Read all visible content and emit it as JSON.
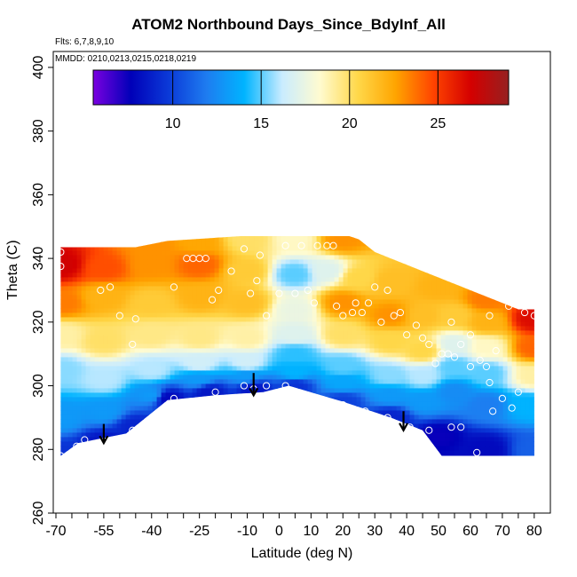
{
  "chart_data": {
    "type": "heatmap",
    "title": "ATOM2 Northbound Days_Since_BdyInf_All",
    "flights_label": "Flts: 6,7,8,9,10",
    "dates_label": "MMDD: 0210,0213,0215,0218,0219",
    "xlabel": "Latitude (deg N)",
    "ylabel": "Theta (C)",
    "xlim": [
      -70,
      82
    ],
    "ylim": [
      260,
      405
    ],
    "xticks": [
      -70,
      -55,
      -40,
      -25,
      -10,
      0,
      10,
      20,
      30,
      40,
      50,
      60,
      70,
      80
    ],
    "yticks": [
      260,
      280,
      300,
      320,
      340,
      360,
      380,
      400
    ],
    "colorbar": {
      "range": [
        5.5,
        29
      ],
      "ticks": [
        10,
        15,
        20,
        25
      ],
      "colors": [
        "#7a00e0",
        "#0000b8",
        "#0b3ad8",
        "#1e7cf0",
        "#00b4ff",
        "#c9ecff",
        "#fffbd0",
        "#ffd84a",
        "#ffa500",
        "#ff4400",
        "#d40000",
        "#962020"
      ]
    },
    "fill_outline": [
      [
        -68.5,
        278
      ],
      [
        -63,
        282
      ],
      [
        -48,
        285
      ],
      [
        -35,
        295.5
      ],
      [
        -20,
        297
      ],
      [
        -5,
        298
      ],
      [
        3,
        300
      ],
      [
        20,
        295
      ],
      [
        35,
        290
      ],
      [
        45,
        286
      ],
      [
        51,
        278
      ],
      [
        80,
        278
      ],
      [
        80,
        324
      ],
      [
        75,
        324
      ],
      [
        70,
        326
      ],
      [
        65,
        328
      ],
      [
        60,
        330
      ],
      [
        55,
        332
      ],
      [
        50,
        334
      ],
      [
        45,
        336
      ],
      [
        40,
        338
      ],
      [
        35,
        340
      ],
      [
        30,
        342
      ],
      [
        25,
        346
      ],
      [
        22,
        347
      ],
      [
        -12,
        347
      ],
      [
        -35,
        345.5
      ],
      [
        -45,
        343.5
      ],
      [
        -68.5,
        343.5
      ]
    ],
    "field_points": [
      {
        "lat": -68,
        "theta": 278,
        "value": 9.5
      },
      {
        "lat": -55,
        "theta": 282,
        "value": 8.5
      },
      {
        "lat": -45,
        "theta": 287,
        "value": 9
      },
      {
        "lat": -35,
        "theta": 296,
        "value": 8
      },
      {
        "lat": -22,
        "theta": 298,
        "value": 8.5
      },
      {
        "lat": -8,
        "theta": 299,
        "value": 8.5
      },
      {
        "lat": 5,
        "theta": 300,
        "value": 9.5
      },
      {
        "lat": 20,
        "theta": 295,
        "value": 10
      },
      {
        "lat": 35,
        "theta": 290,
        "value": 9
      },
      {
        "lat": 50,
        "theta": 284,
        "value": 7.5
      },
      {
        "lat": 65,
        "theta": 280,
        "value": 8
      },
      {
        "lat": 80,
        "theta": 280,
        "value": 11
      },
      {
        "lat": -68,
        "theta": 290,
        "value": 13
      },
      {
        "lat": -55,
        "theta": 292,
        "value": 13
      },
      {
        "lat": -40,
        "theta": 297,
        "value": 13
      },
      {
        "lat": -25,
        "theta": 302,
        "value": 13
      },
      {
        "lat": -10,
        "theta": 303,
        "value": 13
      },
      {
        "lat": 5,
        "theta": 304,
        "value": 14
      },
      {
        "lat": 20,
        "theta": 301,
        "value": 13.5
      },
      {
        "lat": 35,
        "theta": 297,
        "value": 13
      },
      {
        "lat": 45,
        "theta": 295,
        "value": 13
      },
      {
        "lat": 55,
        "theta": 298,
        "value": 12.5
      },
      {
        "lat": 65,
        "theta": 294,
        "value": 12
      },
      {
        "lat": 78,
        "theta": 294,
        "value": 14
      },
      {
        "lat": -68,
        "theta": 305,
        "value": 15.5
      },
      {
        "lat": -55,
        "theta": 302,
        "value": 16
      },
      {
        "lat": -40,
        "theta": 305,
        "value": 16
      },
      {
        "lat": -25,
        "theta": 307,
        "value": 16.5
      },
      {
        "lat": -10,
        "theta": 307,
        "value": 16.5
      },
      {
        "lat": 5,
        "theta": 310,
        "value": 14.5
      },
      {
        "lat": 20,
        "theta": 306,
        "value": 15
      },
      {
        "lat": 35,
        "theta": 303,
        "value": 15.5
      },
      {
        "lat": 45,
        "theta": 303,
        "value": 16
      },
      {
        "lat": 55,
        "theta": 306,
        "value": 15
      },
      {
        "lat": 65,
        "theta": 304,
        "value": 15
      },
      {
        "lat": 80,
        "theta": 303,
        "value": 19
      },
      {
        "lat": -68,
        "theta": 316,
        "value": 19
      },
      {
        "lat": -55,
        "theta": 314,
        "value": 20
      },
      {
        "lat": -40,
        "theta": 316,
        "value": 19.5
      },
      {
        "lat": -25,
        "theta": 315,
        "value": 19.5
      },
      {
        "lat": -10,
        "theta": 315,
        "value": 19
      },
      {
        "lat": 5,
        "theta": 316,
        "value": 17
      },
      {
        "lat": 20,
        "theta": 316,
        "value": 20
      },
      {
        "lat": 35,
        "theta": 314,
        "value": 20.5
      },
      {
        "lat": 45,
        "theta": 311,
        "value": 20.5
      },
      {
        "lat": 55,
        "theta": 313,
        "value": 17
      },
      {
        "lat": 65,
        "theta": 312,
        "value": 18.5
      },
      {
        "lat": 80,
        "theta": 312,
        "value": 24
      },
      {
        "lat": -68,
        "theta": 326,
        "value": 23.5
      },
      {
        "lat": -55,
        "theta": 328,
        "value": 22
      },
      {
        "lat": -40,
        "theta": 326,
        "value": 21
      },
      {
        "lat": -25,
        "theta": 328,
        "value": 22
      },
      {
        "lat": -10,
        "theta": 326,
        "value": 21.5
      },
      {
        "lat": 5,
        "theta": 324,
        "value": 17.5
      },
      {
        "lat": 20,
        "theta": 326,
        "value": 23
      },
      {
        "lat": 35,
        "theta": 322,
        "value": 23
      },
      {
        "lat": 45,
        "theta": 322,
        "value": 21.5
      },
      {
        "lat": 55,
        "theta": 322,
        "value": 21
      },
      {
        "lat": 65,
        "theta": 320,
        "value": 22
      },
      {
        "lat": 80,
        "theta": 321,
        "value": 26.5
      },
      {
        "lat": -68,
        "theta": 338,
        "value": 27
      },
      {
        "lat": -55,
        "theta": 337,
        "value": 24.5
      },
      {
        "lat": -40,
        "theta": 338,
        "value": 23
      },
      {
        "lat": -25,
        "theta": 338,
        "value": 24
      },
      {
        "lat": -10,
        "theta": 336,
        "value": 21
      },
      {
        "lat": 5,
        "theta": 335,
        "value": 15
      },
      {
        "lat": 15,
        "theta": 336,
        "value": 17
      },
      {
        "lat": 25,
        "theta": 334,
        "value": 20.5
      },
      {
        "lat": 35,
        "theta": 333,
        "value": 21.5
      },
      {
        "lat": 50,
        "theta": 331,
        "value": 22
      },
      {
        "lat": 65,
        "theta": 327,
        "value": 23.5
      },
      {
        "lat": -40,
        "theta": 344,
        "value": 23
      },
      {
        "lat": -25,
        "theta": 345,
        "value": 22.5
      },
      {
        "lat": -10,
        "theta": 346,
        "value": 20
      },
      {
        "lat": 5,
        "theta": 346,
        "value": 18.5
      },
      {
        "lat": 20,
        "theta": 346,
        "value": 23
      }
    ],
    "observation_points": [
      [
        -68.5,
        342
      ],
      [
        -68.5,
        337.5
      ],
      [
        -68.5,
        278
      ],
      [
        -63.5,
        281
      ],
      [
        -61,
        283
      ],
      [
        -46,
        286
      ],
      [
        -56,
        330
      ],
      [
        -53,
        331
      ],
      [
        -50,
        322
      ],
      [
        -45,
        321
      ],
      [
        -46,
        313
      ],
      [
        -33,
        331
      ],
      [
        -29,
        340
      ],
      [
        -27,
        340
      ],
      [
        -25,
        340
      ],
      [
        -23,
        340
      ],
      [
        -21,
        327
      ],
      [
        -19,
        330
      ],
      [
        -33,
        296
      ],
      [
        -20,
        298
      ],
      [
        -15,
        336
      ],
      [
        -11,
        343
      ],
      [
        -9,
        329
      ],
      [
        -7,
        333
      ],
      [
        -6,
        341
      ],
      [
        -4,
        322
      ],
      [
        0,
        329
      ],
      [
        2,
        344
      ],
      [
        -11,
        300
      ],
      [
        -8,
        299
      ],
      [
        -4,
        300
      ],
      [
        2,
        300
      ],
      [
        5,
        329
      ],
      [
        7,
        344
      ],
      [
        9,
        330
      ],
      [
        11,
        326
      ],
      [
        12,
        344
      ],
      [
        15,
        344
      ],
      [
        17,
        344
      ],
      [
        18,
        325
      ],
      [
        20,
        322
      ],
      [
        23,
        323
      ],
      [
        24,
        326
      ],
      [
        26,
        323
      ],
      [
        28,
        326
      ],
      [
        30,
        331
      ],
      [
        32,
        320
      ],
      [
        34,
        330
      ],
      [
        36,
        322
      ],
      [
        38,
        323
      ],
      [
        40,
        316
      ],
      [
        43,
        319
      ],
      [
        45,
        315
      ],
      [
        47,
        313
      ],
      [
        49,
        307
      ],
      [
        51,
        310
      ],
      [
        53,
        310
      ],
      [
        55,
        309
      ],
      [
        8,
        296
      ],
      [
        14,
        294
      ],
      [
        20,
        294
      ],
      [
        27,
        292
      ],
      [
        34,
        290
      ],
      [
        41,
        287
      ],
      [
        47,
        286
      ],
      [
        54,
        287
      ],
      [
        57,
        287
      ],
      [
        60,
        306
      ],
      [
        63,
        308
      ],
      [
        65,
        306
      ],
      [
        66,
        301
      ],
      [
        67,
        292
      ],
      [
        62,
        279
      ],
      [
        70,
        296
      ],
      [
        73,
        293
      ],
      [
        54,
        320
      ],
      [
        57,
        313
      ],
      [
        60,
        316
      ],
      [
        66,
        322
      ],
      [
        68,
        311
      ],
      [
        72,
        325
      ],
      [
        75,
        298
      ],
      [
        77,
        323
      ],
      [
        80,
        322
      ]
    ],
    "arrows": [
      {
        "lat": -55,
        "theta_from": 288,
        "theta_to": 282
      },
      {
        "lat": -8,
        "theta_from": 304,
        "theta_to": 297
      },
      {
        "lat": 39,
        "theta_from": 292,
        "theta_to": 286
      }
    ]
  }
}
